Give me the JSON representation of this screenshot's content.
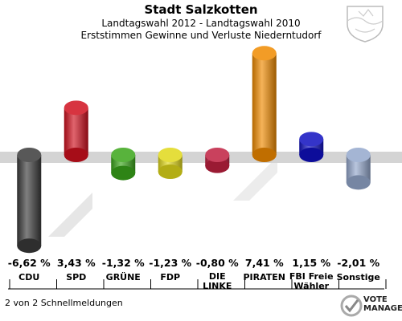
{
  "header": {
    "title": "Stadt Salzkotten",
    "subtitle1": "Landtagswahl 2012 - Landtagswahl 2010",
    "subtitle2": "Erststimmen Gewinne und Verluste Niederntudorf"
  },
  "chart_data": {
    "type": "bar",
    "categories": [
      "CDU",
      "SPD",
      "GRÜNE",
      "FDP",
      "DIE LINKE",
      "PIRATEN",
      "FBI Freie Wähler",
      "Sonstige"
    ],
    "category_lines": [
      [
        "CDU"
      ],
      [
        "SPD"
      ],
      [
        "GRÜNE"
      ],
      [
        "FDP"
      ],
      [
        "DIE",
        "LINKE"
      ],
      [
        "PIRATEN"
      ],
      [
        "FBI Freie",
        "Wähler"
      ],
      [
        "Sonstige"
      ]
    ],
    "values": [
      -6.62,
      3.43,
      -1.32,
      -1.23,
      -0.8,
      7.41,
      1.15,
      -2.01
    ],
    "value_labels": [
      "-6,62 %",
      "3,43 %",
      "-1,32 %",
      "-1,23 %",
      "-0,80 %",
      "7,41 %",
      "1,15 %",
      "-2,01 %"
    ],
    "colors": [
      "#3a3a3a",
      "#d0101e",
      "#3aa51a",
      "#e0d81a",
      "#c02040",
      "#f08a00",
      "#1010c0",
      "#94a8cc"
    ],
    "ylim": [
      -7,
      8
    ],
    "grid": false,
    "legend": "none"
  },
  "footer": {
    "note": "2 von 2 Schnellmeldungen",
    "logo": [
      "VOTE",
      "MANAGER"
    ]
  }
}
